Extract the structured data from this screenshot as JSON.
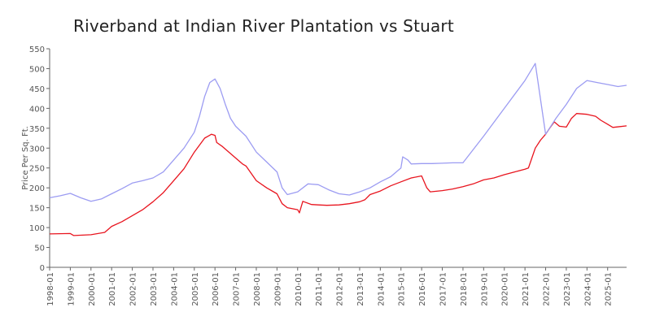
{
  "chart_data": {
    "type": "line",
    "title": "Riverband at Indian River Plantation vs Stuart",
    "xlabel": "",
    "ylabel": "Price Per Sq. Ft.",
    "ylim": [
      0,
      550
    ],
    "yticks": [
      0,
      50,
      100,
      150,
      200,
      250,
      300,
      350,
      400,
      450,
      500,
      550
    ],
    "xlim": [
      "1998-01",
      "2025-12"
    ],
    "xticks": [
      "1998-01",
      "1999-01",
      "2000-01",
      "2001-01",
      "2002-01",
      "2003-01",
      "2004-01",
      "2005-01",
      "2006-01",
      "2007-01",
      "2008-01",
      "2009-01",
      "2010-01",
      "2011-01",
      "2012-01",
      "2013-01",
      "2014-01",
      "2015-01",
      "2016-01",
      "2017-01",
      "2018-01",
      "2019-01",
      "2020-01",
      "2021-01",
      "2022-01",
      "2023-01",
      "2024-01",
      "2025-01"
    ],
    "grid": false,
    "colors": {
      "series1": "#e8141e",
      "series2": "#9c9cf2",
      "axis": "#666666",
      "text": "#555555"
    },
    "series": [
      {
        "color": "#e8141e",
        "points": [
          [
            "1998-01",
            84
          ],
          [
            "1999-01",
            85
          ],
          [
            "1999-03",
            80
          ],
          [
            "2000-01",
            82
          ],
          [
            "2000-09",
            88
          ],
          [
            "2001-01",
            103
          ],
          [
            "2001-07",
            115
          ],
          [
            "2002-01",
            130
          ],
          [
            "2002-07",
            145
          ],
          [
            "2003-01",
            165
          ],
          [
            "2003-07",
            188
          ],
          [
            "2004-01",
            218
          ],
          [
            "2004-07",
            248
          ],
          [
            "2005-01",
            290
          ],
          [
            "2005-07",
            325
          ],
          [
            "2005-11",
            335
          ],
          [
            "2006-01",
            332
          ],
          [
            "2006-02",
            314
          ],
          [
            "2006-05",
            305
          ],
          [
            "2007-01",
            275
          ],
          [
            "2007-05",
            260
          ],
          [
            "2007-07",
            255
          ],
          [
            "2008-01",
            218
          ],
          [
            "2008-07",
            200
          ],
          [
            "2009-01",
            185
          ],
          [
            "2009-04",
            160
          ],
          [
            "2009-07",
            150
          ],
          [
            "2010-01",
            145
          ],
          [
            "2010-02",
            137
          ],
          [
            "2010-04",
            166
          ],
          [
            "2010-09",
            158
          ],
          [
            "2011-01",
            157
          ],
          [
            "2011-06",
            156
          ],
          [
            "2012-01",
            157
          ],
          [
            "2012-07",
            160
          ],
          [
            "2013-01",
            165
          ],
          [
            "2013-04",
            170
          ],
          [
            "2013-07",
            183
          ],
          [
            "2014-01",
            192
          ],
          [
            "2014-07",
            205
          ],
          [
            "2015-01",
            215
          ],
          [
            "2015-07",
            225
          ],
          [
            "2016-01",
            230
          ],
          [
            "2016-04",
            200
          ],
          [
            "2016-06",
            190
          ],
          [
            "2017-01",
            193
          ],
          [
            "2017-07",
            197
          ],
          [
            "2018-01",
            203
          ],
          [
            "2018-07",
            210
          ],
          [
            "2019-01",
            220
          ],
          [
            "2019-07",
            225
          ],
          [
            "2020-01",
            233
          ],
          [
            "2020-07",
            240
          ],
          [
            "2021-01",
            247
          ],
          [
            "2021-03",
            250
          ],
          [
            "2021-05",
            275
          ],
          [
            "2021-07",
            300
          ],
          [
            "2021-10",
            320
          ],
          [
            "2022-01",
            335
          ],
          [
            "2022-03",
            348
          ],
          [
            "2022-06",
            366
          ],
          [
            "2022-09",
            355
          ],
          [
            "2023-01",
            353
          ],
          [
            "2023-04",
            375
          ],
          [
            "2023-07",
            387
          ],
          [
            "2024-01",
            385
          ],
          [
            "2024-06",
            380
          ],
          [
            "2024-09",
            370
          ],
          [
            "2025-01",
            360
          ],
          [
            "2025-04",
            352
          ],
          [
            "2025-12",
            356
          ]
        ]
      },
      {
        "color": "#9c9cf2",
        "points": [
          [
            "1998-01",
            175
          ],
          [
            "1998-07",
            180
          ],
          [
            "1999-01",
            186
          ],
          [
            "1999-07",
            175
          ],
          [
            "2000-01",
            166
          ],
          [
            "2000-07",
            172
          ],
          [
            "2001-01",
            185
          ],
          [
            "2001-07",
            198
          ],
          [
            "2002-01",
            212
          ],
          [
            "2002-07",
            218
          ],
          [
            "2003-01",
            225
          ],
          [
            "2003-07",
            240
          ],
          [
            "2004-01",
            270
          ],
          [
            "2004-07",
            300
          ],
          [
            "2005-01",
            340
          ],
          [
            "2005-04",
            380
          ],
          [
            "2005-07",
            430
          ],
          [
            "2005-10",
            465
          ],
          [
            "2006-01",
            474
          ],
          [
            "2006-04",
            450
          ],
          [
            "2006-07",
            410
          ],
          [
            "2006-10",
            375
          ],
          [
            "2007-01",
            355
          ],
          [
            "2007-07",
            330
          ],
          [
            "2008-01",
            290
          ],
          [
            "2008-07",
            265
          ],
          [
            "2009-01",
            240
          ],
          [
            "2009-04",
            200
          ],
          [
            "2009-07",
            183
          ],
          [
            "2010-01",
            190
          ],
          [
            "2010-07",
            210
          ],
          [
            "2011-01",
            208
          ],
          [
            "2011-07",
            195
          ],
          [
            "2012-01",
            185
          ],
          [
            "2012-07",
            182
          ],
          [
            "2013-01",
            190
          ],
          [
            "2013-07",
            200
          ],
          [
            "2014-01",
            215
          ],
          [
            "2014-07",
            228
          ],
          [
            "2015-01",
            250
          ],
          [
            "2015-02",
            278
          ],
          [
            "2015-05",
            270
          ],
          [
            "2015-07",
            260
          ],
          [
            "2016-01",
            261
          ],
          [
            "2016-07",
            261
          ],
          [
            "2017-01",
            262
          ],
          [
            "2017-07",
            263
          ],
          [
            "2018-01",
            263
          ],
          [
            "2019-01",
            330
          ],
          [
            "2020-01",
            400
          ],
          [
            "2021-01",
            470
          ],
          [
            "2021-07",
            513
          ],
          [
            "2022-01",
            335
          ],
          [
            "2022-07",
            375
          ],
          [
            "2023-01",
            410
          ],
          [
            "2023-07",
            450
          ],
          [
            "2024-01",
            470
          ],
          [
            "2024-07",
            465
          ],
          [
            "2025-01",
            460
          ],
          [
            "2025-07",
            455
          ],
          [
            "2025-12",
            458
          ]
        ]
      }
    ]
  }
}
